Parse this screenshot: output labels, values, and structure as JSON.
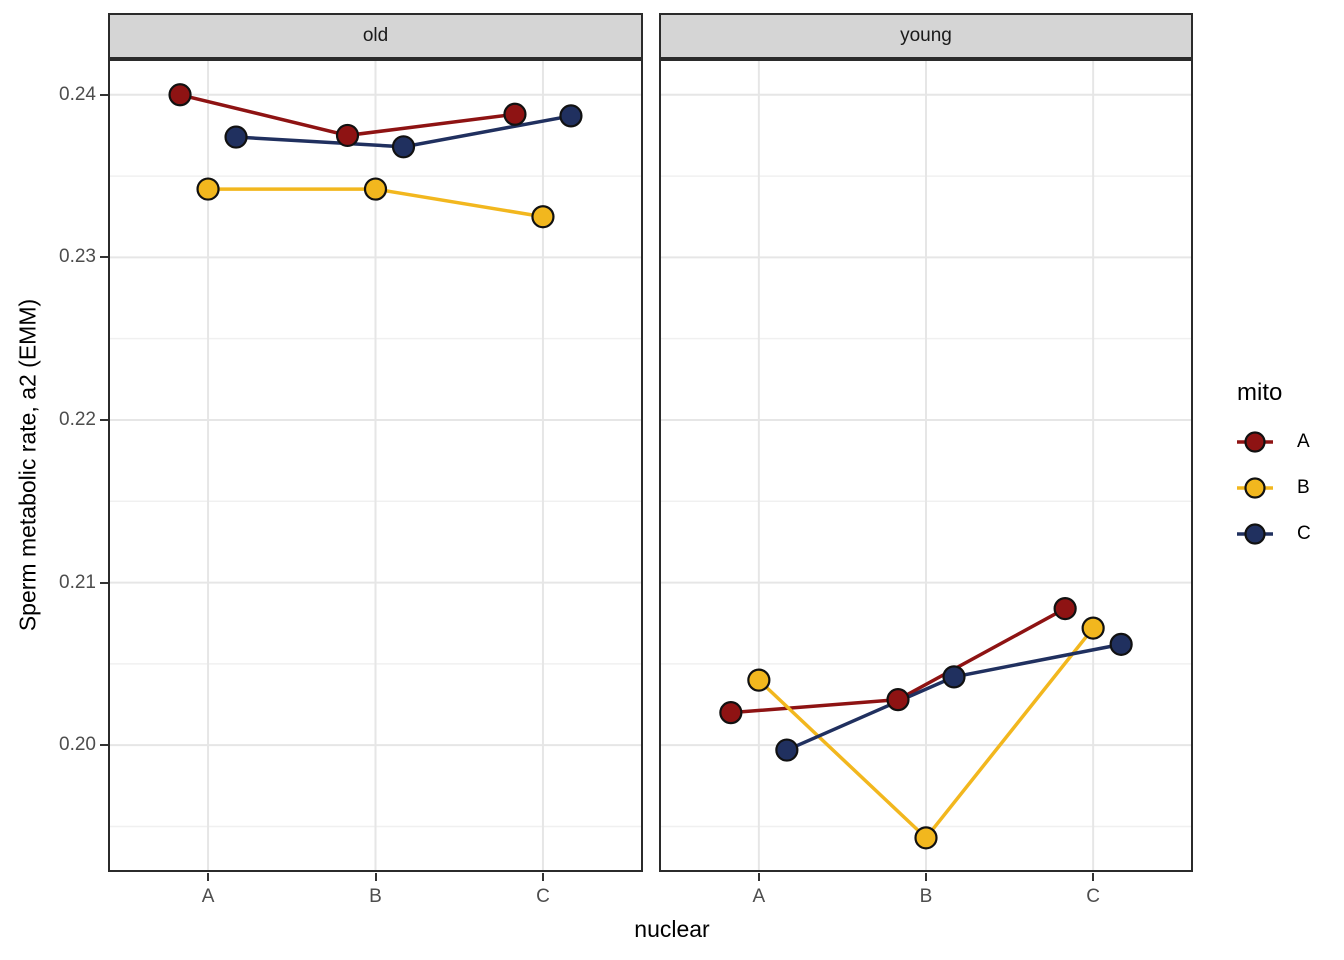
{
  "chart_data": {
    "type": "line",
    "title": "",
    "xlabel": "nuclear",
    "ylabel": "Sperm metabolic rate, a2 (EMM)",
    "categories": [
      "A",
      "B",
      "C"
    ],
    "y_ticks": [
      {
        "label": "0.24",
        "value": 0.24
      },
      {
        "label": "0.23",
        "value": 0.23
      },
      {
        "label": "0.22",
        "value": 0.22
      },
      {
        "label": "0.21",
        "value": 0.21
      },
      {
        "label": "0.20",
        "value": 0.2
      }
    ],
    "ylim": [
      0.1922,
      0.2422
    ],
    "grid": true,
    "legend_position": "right",
    "legend": {
      "title": "mito",
      "entries": [
        {
          "label": "A",
          "color": "#8E1313"
        },
        {
          "label": "B",
          "color": "#F2B71E"
        },
        {
          "label": "C",
          "color": "#20305F"
        }
      ]
    },
    "facets": [
      {
        "label": "old",
        "series": [
          {
            "name": "A",
            "color": "#8E1313",
            "values": [
              0.24,
              0.2375,
              0.2388
            ]
          },
          {
            "name": "B",
            "color": "#F2B71E",
            "values": [
              0.2342,
              0.2342,
              0.2325
            ]
          },
          {
            "name": "C",
            "color": "#20305F",
            "values": [
              0.2374,
              0.2368,
              0.2387
            ]
          }
        ]
      },
      {
        "label": "young",
        "series": [
          {
            "name": "A",
            "color": "#8E1313",
            "values": [
              0.202,
              0.2028,
              0.2084
            ]
          },
          {
            "name": "B",
            "color": "#F2B71E",
            "values": [
              0.204,
              0.1943,
              0.2072
            ]
          },
          {
            "name": "C",
            "color": "#20305F",
            "values": [
              0.1997,
              0.2042,
              0.2062
            ]
          }
        ]
      }
    ],
    "style": {
      "strip_fill": "#d5d5d5",
      "panel_border": "#2b2b2b",
      "grid_major": "#e6e6e6",
      "grid_minor": "#f0f0f0",
      "point_outline": "#111111",
      "tick_text": "#4d4d4d"
    }
  }
}
